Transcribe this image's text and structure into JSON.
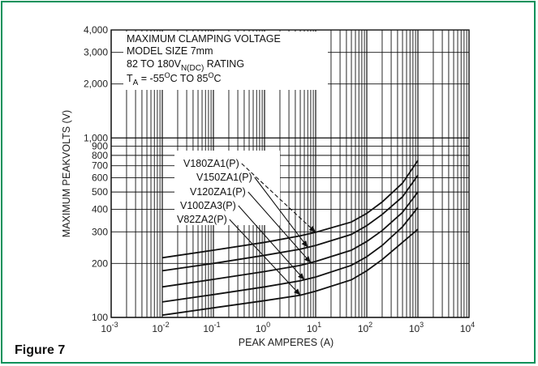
{
  "figure_label": "Figure 7",
  "chart_data": {
    "type": "line",
    "xscale": "log",
    "yscale": "log",
    "xlim": [
      0.001,
      10000
    ],
    "ylim": [
      100,
      4000
    ],
    "xlabel": "PEAK AMPERES (A)",
    "ylabel": "MAXIMUM PEAKVOLTS (V)",
    "x_tick_labels": [
      {
        "base": "10",
        "exp": "-3"
      },
      {
        "base": "10",
        "exp": "-2"
      },
      {
        "base": "10",
        "exp": "-1"
      },
      {
        "base": "10",
        "exp": "0"
      },
      {
        "base": "10",
        "exp": "1"
      },
      {
        "base": "10",
        "exp": "2"
      },
      {
        "base": "10",
        "exp": "3"
      },
      {
        "base": "10",
        "exp": "4"
      }
    ],
    "y_ticks": [
      {
        "v": 100,
        "label": "100"
      },
      {
        "v": 200,
        "label": "200"
      },
      {
        "v": 300,
        "label": "300"
      },
      {
        "v": 400,
        "label": "400"
      },
      {
        "v": 500,
        "label": "500"
      },
      {
        "v": 600,
        "label": "600"
      },
      {
        "v": 700,
        "label": "700"
      },
      {
        "v": 800,
        "label": "800"
      },
      {
        "v": 900,
        "label": "900"
      },
      {
        "v": 1000,
        "label": "1,000"
      },
      {
        "v": 2000,
        "label": "2,000"
      },
      {
        "v": 3000,
        "label": "3,000"
      },
      {
        "v": 4000,
        "label": "4,000"
      }
    ],
    "annotation": {
      "line1": "MAXIMUM CLAMPING VOLTAGE",
      "line2": "MODEL SIZE 7mm",
      "line3_pre": "82 TO 180V",
      "line3_sub": "N(DC)",
      "line3_post": " RATING",
      "line4_pre": "T",
      "line4_sub": "A",
      "line4_mid": " = -55",
      "line4_sup1": "O",
      "line4_mid2": "C TO 85",
      "line4_sup2": "O",
      "line4_post": "C"
    },
    "series": [
      {
        "name": "V180ZA1(P)",
        "points": [
          [
            0.01,
            215
          ],
          [
            0.1,
            237
          ],
          [
            1,
            262
          ],
          [
            5,
            285
          ],
          [
            10,
            298
          ],
          [
            50,
            340
          ],
          [
            100,
            380
          ],
          [
            200,
            440
          ],
          [
            500,
            560
          ],
          [
            1000,
            750
          ]
        ],
        "pointer_at": 10,
        "dashed": true
      },
      {
        "name": "V150ZA1(P)",
        "points": [
          [
            0.01,
            182
          ],
          [
            0.1,
            200
          ],
          [
            1,
            222
          ],
          [
            5,
            240
          ],
          [
            10,
            252
          ],
          [
            50,
            290
          ],
          [
            100,
            325
          ],
          [
            200,
            375
          ],
          [
            500,
            470
          ],
          [
            1000,
            620
          ]
        ],
        "pointer_at": 7
      },
      {
        "name": "V120ZA1(P)",
        "points": [
          [
            0.01,
            148
          ],
          [
            0.1,
            163
          ],
          [
            1,
            180
          ],
          [
            5,
            195
          ],
          [
            10,
            205
          ],
          [
            50,
            237
          ],
          [
            100,
            265
          ],
          [
            200,
            305
          ],
          [
            500,
            385
          ],
          [
            1000,
            500
          ]
        ],
        "pointer_at": 8
      },
      {
        "name": "V100ZA3(P)",
        "points": [
          [
            0.01,
            122
          ],
          [
            0.1,
            134
          ],
          [
            1,
            148
          ],
          [
            5,
            160
          ],
          [
            10,
            168
          ],
          [
            50,
            195
          ],
          [
            100,
            218
          ],
          [
            200,
            252
          ],
          [
            500,
            320
          ],
          [
            1000,
            410
          ]
        ],
        "pointer_at": 6
      },
      {
        "name": "V82ZA2(P)",
        "points": [
          [
            0.01,
            103
          ],
          [
            0.1,
            113
          ],
          [
            1,
            124
          ],
          [
            5,
            133
          ],
          [
            10,
            140
          ],
          [
            50,
            162
          ],
          [
            100,
            182
          ],
          [
            200,
            210
          ],
          [
            500,
            262
          ],
          [
            1000,
            310
          ]
        ],
        "pointer_at": 5
      }
    ]
  }
}
